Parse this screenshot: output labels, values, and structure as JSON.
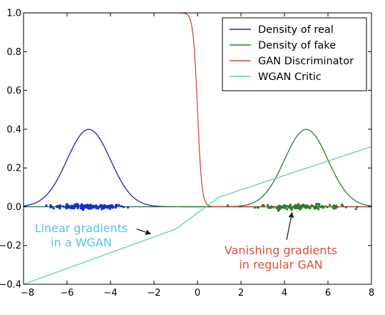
{
  "chart_data": {
    "type": "line",
    "title": "",
    "xlabel": "",
    "ylabel": "",
    "xlim": [
      -8,
      8
    ],
    "ylim": [
      -0.4,
      1.0
    ],
    "x_ticks": [
      -8,
      -6,
      -4,
      -2,
      0,
      2,
      4,
      6,
      8
    ],
    "x_tick_labels": [
      "−8",
      "−6",
      "−4",
      "−2",
      "0",
      "2",
      "4",
      "6",
      "8"
    ],
    "y_ticks": [
      -0.4,
      -0.2,
      0.0,
      0.2,
      0.4,
      0.6,
      0.8,
      1.0
    ],
    "y_tick_labels": [
      "−0.4",
      "−0.2",
      "0.0",
      "0.2",
      "0.4",
      "0.6",
      "0.8",
      "1.0"
    ],
    "grid": false,
    "legend_position": "top-right",
    "series": [
      {
        "name": "Density of real",
        "color": "#2020c0",
        "kind": "gaussian",
        "x": [
          -8,
          -7,
          -6.5,
          -6,
          -5.5,
          -5,
          -4.5,
          -4,
          -3.5,
          -3,
          -2,
          0,
          8
        ],
        "y": [
          0.0044,
          0.054,
          0.13,
          0.242,
          0.352,
          0.399,
          0.352,
          0.242,
          0.13,
          0.054,
          0.0044,
          0.0,
          0.0
        ]
      },
      {
        "name": "Density of fake",
        "color": "#2f7a2f",
        "kind": "gaussian",
        "x": [
          -8,
          0,
          2,
          3,
          3.5,
          4,
          4.5,
          5,
          5.5,
          6,
          6.5,
          7,
          8
        ],
        "y": [
          0.0,
          0.0,
          0.0044,
          0.054,
          0.13,
          0.242,
          0.352,
          0.399,
          0.352,
          0.242,
          0.13,
          0.054,
          0.0044
        ]
      },
      {
        "name": "GAN Discriminator",
        "color": "#d04a3a",
        "kind": "sigmoid",
        "x": [
          -1,
          -0.5,
          -0.3,
          -0.2,
          -0.1,
          0,
          0.1,
          0.2,
          0.4,
          0.7,
          1,
          8
        ],
        "y": [
          1.0,
          0.99,
          0.95,
          0.88,
          0.73,
          0.5,
          0.27,
          0.12,
          0.02,
          0.0,
          0.0,
          0.0
        ]
      },
      {
        "name": "WGAN Critic",
        "color": "#5fcfb5",
        "kind": "piecewise-linear",
        "x": [
          -8,
          -1,
          1,
          8
        ],
        "y": [
          -0.4,
          -0.115,
          0.05,
          0.31
        ]
      }
    ],
    "scatter": [
      {
        "name": "real samples",
        "color": "#1030d0",
        "center": -5.0,
        "spread": 0.85,
        "count": 150
      },
      {
        "name": "fake samples",
        "color": "#2f7a2f",
        "center": 4.7,
        "spread": 0.95,
        "count": 140
      }
    ],
    "annotations": [
      {
        "text_lines": [
          "Linear gradients",
          "in a WGAN"
        ],
        "color": "#5bc0e6",
        "arrow_from": [
          -2.8,
          -0.115
        ],
        "arrow_to": [
          -2.15,
          -0.14
        ]
      },
      {
        "text_lines": [
          "Vanishing gradients",
          "in regular GAN"
        ],
        "color": "#d9503f",
        "arrow_from": [
          4.1,
          -0.17
        ],
        "arrow_to": [
          4.35,
          -0.03
        ]
      }
    ]
  }
}
